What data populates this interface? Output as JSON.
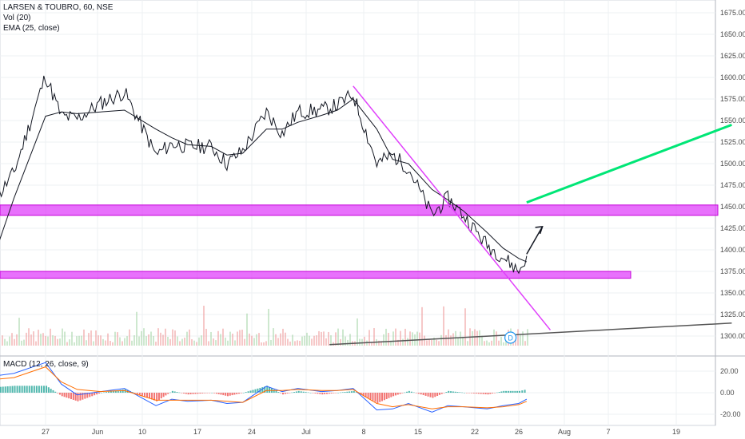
{
  "chart_data": {
    "type": "line",
    "title": "LARSEN & TOUBRO, 60, NSE",
    "indicators": [
      "Vol (20)",
      "EMA (25, close)"
    ],
    "macd_label": "MACD (12, 26, close, 9)",
    "xlabel": "",
    "ylabel": "",
    "x_ticks": [
      "27",
      "Jun",
      "10",
      "17",
      "24",
      "Jul",
      "8",
      "15",
      "22",
      "26",
      "Aug",
      "7",
      "19"
    ],
    "y_ticks": [
      1675,
      1650,
      1625,
      1600,
      1575,
      1550,
      1525,
      1500,
      1475,
      1450,
      1425,
      1400,
      1375,
      1350,
      1325,
      1300
    ],
    "ylim": [
      1290,
      1685
    ],
    "macd_ticks": [
      "20.00",
      "0.00",
      "-20.00"
    ],
    "macd_ylim": [
      -27,
      30
    ],
    "grid": true,
    "series": [
      {
        "name": "",
        "color": "#131722",
        "x": [
          "20 May",
          "23 May",
          "27 May",
          "29 May",
          "31 May",
          "3 Jun",
          "6 Jun",
          "10 Jun",
          "12 Jun",
          "14 Jun",
          "17 Jun",
          "19 Jun",
          "21 Jun",
          "24 Jun",
          "26 Jun",
          "28 Jun",
          "1 Jul",
          "3 Jul",
          "5 Jul",
          "8 Jul",
          "10 Jul",
          "12 Jul",
          "15 Jul",
          "17 Jul",
          "19 Jul",
          "22 Jul",
          "24 Jul",
          "26 Jul",
          "27 Jul"
        ],
        "values": [
          1448,
          1490,
          1602,
          1555,
          1552,
          1570,
          1583,
          1510,
          1523,
          1520,
          1520,
          1500,
          1515,
          1560,
          1535,
          1560,
          1562,
          1568,
          1580,
          1500,
          1510,
          1495,
          1440,
          1460,
          1440,
          1405,
          1392,
          1375,
          1393
        ]
      },
      {
        "name": "",
        "color": "#131722",
        "x": [
          "20 May",
          "23 May",
          "27 May",
          "29 May",
          "31 May",
          "3 Jun",
          "6 Jun",
          "10 Jun",
          "12 Jun",
          "14 Jun",
          "17 Jun",
          "19 Jun",
          "21 Jun",
          "24 Jun",
          "26 Jun",
          "28 Jun",
          "1 Jul",
          "3 Jul",
          "5 Jul",
          "8 Jul",
          "10 Jul",
          "12 Jul",
          "15 Jul",
          "17 Jul",
          "19 Jul",
          "22 Jul",
          "24 Jul",
          "26 Jul",
          "27 Jul"
        ],
        "values": [
          1380,
          1460,
          1555,
          1560,
          1558,
          1560,
          1562,
          1540,
          1530,
          1522,
          1520,
          1510,
          1512,
          1540,
          1540,
          1548,
          1556,
          1562,
          1575,
          1540,
          1505,
          1500,
          1470,
          1458,
          1445,
          1420,
          1402,
          1390,
          1386
        ]
      }
    ],
    "annotations": [
      {
        "type": "zone",
        "y_from": 1440,
        "y_to": 1452,
        "color": "#e040fb"
      },
      {
        "type": "zone",
        "y_from": 1367,
        "y_to": 1375,
        "color": "#e040fb"
      },
      {
        "type": "trendline",
        "color": "#e040fb",
        "points": [
          [
            "5 Jul",
            1590
          ],
          [
            "30 Jul",
            1307
          ]
        ]
      },
      {
        "type": "trendline",
        "color": "#00e676",
        "points": [
          [
            "27 Jul",
            1455
          ],
          [
            "22 Aug",
            1545
          ]
        ]
      },
      {
        "type": "trendline",
        "color": "#555555",
        "points": [
          [
            "2 Jul",
            1290
          ],
          [
            "22 Aug",
            1315
          ]
        ]
      },
      {
        "type": "arrow",
        "color": "#131722",
        "points": [
          [
            "27 Jul",
            1395
          ],
          [
            "29 Jul",
            1427
          ]
        ]
      },
      {
        "type": "event",
        "label": "D",
        "x": "25 Jul"
      }
    ],
    "macd": {
      "macd_color": "#2962ff",
      "signal_color": "#ff6d00",
      "x": [
        "20 May",
        "23 May",
        "27 May",
        "29 May",
        "31 May",
        "3 Jun",
        "6 Jun",
        "10 Jun",
        "12 Jun",
        "14 Jun",
        "17 Jun",
        "19 Jun",
        "21 Jun",
        "24 Jun",
        "26 Jun",
        "28 Jun",
        "1 Jul",
        "3 Jul",
        "5 Jul",
        "8 Jul",
        "10 Jul",
        "12 Jul",
        "15 Jul",
        "17 Jul",
        "19 Jul",
        "22 Jul",
        "24 Jul",
        "26 Jul",
        "27 Jul"
      ],
      "macd": [
        15,
        18,
        28,
        8,
        -2,
        1,
        4,
        -12,
        -6,
        -8,
        -7,
        -10,
        -9,
        6,
        1,
        4,
        1,
        2,
        4,
        -16,
        -15,
        -10,
        -18,
        -12,
        -13,
        -15,
        -12,
        -10,
        -6
      ],
      "signal": [
        12,
        14,
        24,
        10,
        3,
        1,
        2,
        -7,
        -7,
        -7,
        -7,
        -8,
        -9,
        2,
        2,
        3,
        2,
        2,
        3,
        -10,
        -13,
        -11,
        -15,
        -13,
        -13,
        -14,
        -13,
        -11,
        -8
      ]
    }
  }
}
